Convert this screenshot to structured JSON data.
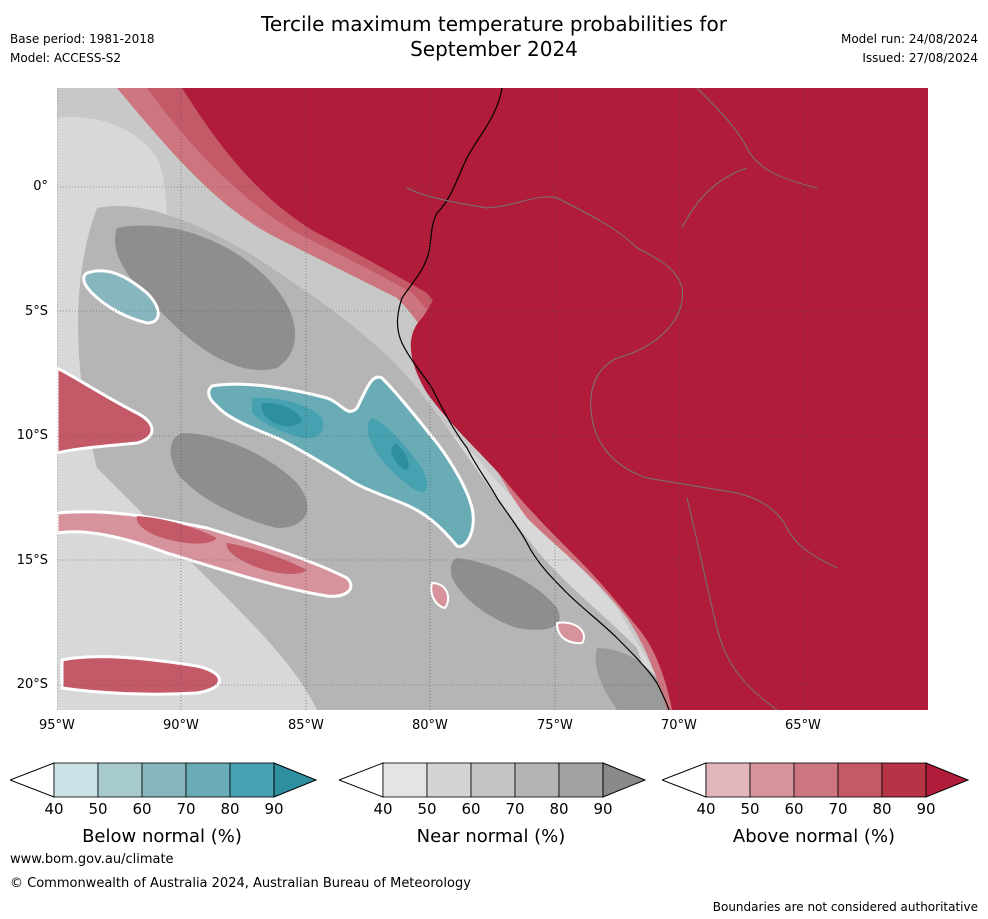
{
  "header": {
    "title_line1": "Tercile maximum temperature probabilities for",
    "title_line2": "September 2024",
    "base_period": "Base period: 1981-2018",
    "model": "Model: ACCESS-S2",
    "model_run": "Model run: 24/08/2024",
    "issued": "Issued: 27/08/2024"
  },
  "map": {
    "lon_labels": [
      "95°W",
      "90°W",
      "85°W",
      "80°W",
      "75°W",
      "70°W",
      "65°W"
    ],
    "lat_labels": [
      "0°",
      "5°S",
      "10°S",
      "15°S",
      "20°S"
    ],
    "lon_range": [
      -95,
      -60
    ],
    "lat_range": [
      -21,
      4
    ]
  },
  "colorbars": [
    {
      "name": "below",
      "label": "Below normal (%)",
      "ticks": [
        "40",
        "50",
        "60",
        "70",
        "80",
        "90"
      ],
      "colors": [
        "#ffffff",
        "#c9e2e6",
        "#a7cacf",
        "#88b6bf",
        "#6aacb6",
        "#46a1b0",
        "#2e8f9e"
      ]
    },
    {
      "name": "near",
      "label": "Near normal (%)",
      "ticks": [
        "40",
        "50",
        "60",
        "70",
        "80",
        "90"
      ],
      "colors": [
        "#ffffff",
        "#e4e4e4",
        "#d4d4d4",
        "#c4c4c4",
        "#b4b4b4",
        "#a2a2a2",
        "#8a8a8a"
      ]
    },
    {
      "name": "above",
      "label": "Above normal (%)",
      "ticks": [
        "40",
        "50",
        "60",
        "70",
        "80",
        "90"
      ],
      "colors": [
        "#ffffff",
        "#e1b7bb",
        "#d6939b",
        "#cd7680",
        "#c45a67",
        "#b73447",
        "#b01c39"
      ]
    }
  ],
  "footer": {
    "website": "www.bom.gov.au/climate",
    "copyright": "© Commonwealth of Australia 2024, Australian Bureau of Meteorology",
    "disclaimer": "Boundaries are not considered authoritative"
  }
}
